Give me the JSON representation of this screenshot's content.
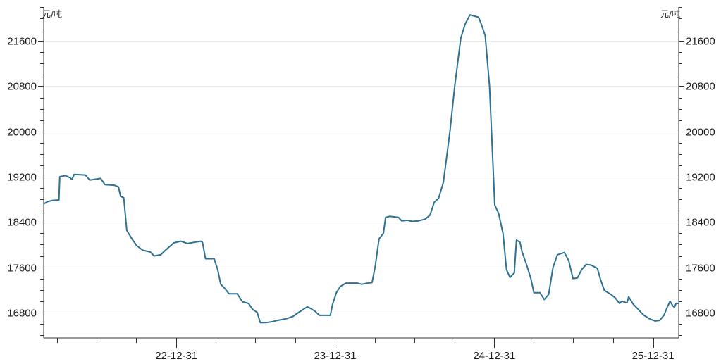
{
  "chart_data": {
    "type": "line",
    "title": "",
    "xlabel": "",
    "ylabel": "元/吨",
    "y2label": "元/吨",
    "grid": true,
    "legend": "none",
    "ylim": [
      16350,
      22200
    ],
    "xlim": [
      "2022-03-01",
      "2026-02-28"
    ],
    "y_ticks": [
      16800,
      17600,
      18400,
      19200,
      20000,
      20800,
      21600
    ],
    "x_ticks": [
      {
        "date": "2022-12-31",
        "label": "22-12-31"
      },
      {
        "date": "2023-12-31",
        "label": "23-12-31"
      },
      {
        "date": "2024-12-31",
        "label": "24-12-31"
      },
      {
        "date": "2025-12-31",
        "label": "25-12-31"
      }
    ],
    "series": [
      {
        "color": "#2e7194",
        "points": [
          [
            "2022-03-01",
            18720
          ],
          [
            "2022-03-10",
            18760
          ],
          [
            "2022-03-20",
            18780
          ],
          [
            "2022-04-05",
            18790
          ],
          [
            "2022-04-07",
            19200
          ],
          [
            "2022-04-20",
            19220
          ],
          [
            "2022-05-01",
            19180
          ],
          [
            "2022-05-05",
            19150
          ],
          [
            "2022-05-10",
            19240
          ],
          [
            "2022-06-05",
            19230
          ],
          [
            "2022-06-15",
            19140
          ],
          [
            "2022-07-10",
            19170
          ],
          [
            "2022-07-20",
            19060
          ],
          [
            "2022-08-10",
            19050
          ],
          [
            "2022-08-20",
            19020
          ],
          [
            "2022-08-25",
            18850
          ],
          [
            "2022-09-01",
            18830
          ],
          [
            "2022-09-08",
            18250
          ],
          [
            "2022-09-20",
            18100
          ],
          [
            "2022-10-01",
            17980
          ],
          [
            "2022-10-15",
            17900
          ],
          [
            "2022-11-01",
            17870
          ],
          [
            "2022-11-10",
            17800
          ],
          [
            "2022-11-25",
            17820
          ],
          [
            "2022-12-10",
            17930
          ],
          [
            "2022-12-25",
            18030
          ],
          [
            "2023-01-10",
            18060
          ],
          [
            "2023-01-25",
            18020
          ],
          [
            "2023-02-10",
            18040
          ],
          [
            "2023-02-25",
            18060
          ],
          [
            "2023-03-01",
            18040
          ],
          [
            "2023-03-08",
            17750
          ],
          [
            "2023-03-28",
            17750
          ],
          [
            "2023-04-05",
            17560
          ],
          [
            "2023-04-12",
            17300
          ],
          [
            "2023-04-22",
            17220
          ],
          [
            "2023-05-01",
            17130
          ],
          [
            "2023-05-20",
            17130
          ],
          [
            "2023-06-01",
            16990
          ],
          [
            "2023-06-15",
            16960
          ],
          [
            "2023-06-25",
            16850
          ],
          [
            "2023-07-05",
            16800
          ],
          [
            "2023-07-12",
            16620
          ],
          [
            "2023-07-25",
            16620
          ],
          [
            "2023-08-10",
            16640
          ],
          [
            "2023-08-20",
            16660
          ],
          [
            "2023-09-10",
            16690
          ],
          [
            "2023-09-25",
            16730
          ],
          [
            "2023-10-10",
            16810
          ],
          [
            "2023-10-28",
            16900
          ],
          [
            "2023-11-05",
            16870
          ],
          [
            "2023-11-15",
            16820
          ],
          [
            "2023-11-25",
            16750
          ],
          [
            "2023-12-20",
            16750
          ],
          [
            "2023-12-25",
            16940
          ],
          [
            "2024-01-03",
            17150
          ],
          [
            "2024-01-12",
            17260
          ],
          [
            "2024-01-25",
            17320
          ],
          [
            "2024-02-20",
            17320
          ],
          [
            "2024-03-01",
            17300
          ],
          [
            "2024-03-15",
            17320
          ],
          [
            "2024-03-25",
            17330
          ],
          [
            "2024-04-01",
            17600
          ],
          [
            "2024-04-10",
            18100
          ],
          [
            "2024-04-20",
            18200
          ],
          [
            "2024-04-25",
            18480
          ],
          [
            "2024-05-05",
            18500
          ],
          [
            "2024-05-25",
            18480
          ],
          [
            "2024-06-01",
            18420
          ],
          [
            "2024-06-15",
            18430
          ],
          [
            "2024-06-25",
            18410
          ],
          [
            "2024-07-10",
            18420
          ],
          [
            "2024-07-25",
            18450
          ],
          [
            "2024-08-05",
            18520
          ],
          [
            "2024-08-15",
            18750
          ],
          [
            "2024-08-25",
            18820
          ],
          [
            "2024-09-05",
            19100
          ],
          [
            "2024-09-20",
            20000
          ],
          [
            "2024-10-01",
            20800
          ],
          [
            "2024-10-15",
            21650
          ],
          [
            "2024-10-25",
            21900
          ],
          [
            "2024-11-05",
            22060
          ],
          [
            "2024-11-15",
            22040
          ],
          [
            "2024-11-25",
            22020
          ],
          [
            "2024-12-01",
            21900
          ],
          [
            "2024-12-10",
            21700
          ],
          [
            "2024-12-20",
            20800
          ],
          [
            "2025-01-01",
            18700
          ],
          [
            "2025-01-10",
            18550
          ],
          [
            "2025-01-20",
            18200
          ],
          [
            "2025-01-28",
            17560
          ],
          [
            "2025-02-05",
            17420
          ],
          [
            "2025-02-15",
            17500
          ],
          [
            "2025-02-20",
            18080
          ],
          [
            "2025-02-28",
            18040
          ],
          [
            "2025-03-05",
            17870
          ],
          [
            "2025-03-15",
            17650
          ],
          [
            "2025-03-25",
            17400
          ],
          [
            "2025-04-01",
            17150
          ],
          [
            "2025-04-15",
            17150
          ],
          [
            "2025-04-25",
            17030
          ],
          [
            "2025-05-05",
            17120
          ],
          [
            "2025-05-15",
            17600
          ],
          [
            "2025-05-25",
            17820
          ],
          [
            "2025-06-10",
            17860
          ],
          [
            "2025-06-20",
            17720
          ],
          [
            "2025-06-30",
            17400
          ],
          [
            "2025-07-10",
            17410
          ],
          [
            "2025-07-20",
            17560
          ],
          [
            "2025-07-30",
            17650
          ],
          [
            "2025-08-10",
            17640
          ],
          [
            "2025-08-25",
            17580
          ],
          [
            "2025-09-01",
            17390
          ],
          [
            "2025-09-10",
            17190
          ],
          [
            "2025-09-25",
            17120
          ],
          [
            "2025-10-05",
            17060
          ],
          [
            "2025-10-15",
            16960
          ],
          [
            "2025-10-20",
            17000
          ],
          [
            "2025-11-01",
            16970
          ],
          [
            "2025-11-05",
            17080
          ],
          [
            "2025-11-15",
            16950
          ],
          [
            "2025-11-25",
            16870
          ],
          [
            "2025-12-10",
            16750
          ],
          [
            "2025-12-25",
            16680
          ],
          [
            "2026-01-05",
            16650
          ],
          [
            "2026-01-15",
            16660
          ],
          [
            "2026-01-25",
            16750
          ],
          [
            "2026-02-02",
            16900
          ],
          [
            "2026-02-08",
            17000
          ],
          [
            "2026-02-14",
            16920
          ],
          [
            "2026-02-18",
            16890
          ],
          [
            "2026-02-22",
            16960
          ],
          [
            "2026-02-28",
            16960
          ]
        ]
      }
    ]
  }
}
